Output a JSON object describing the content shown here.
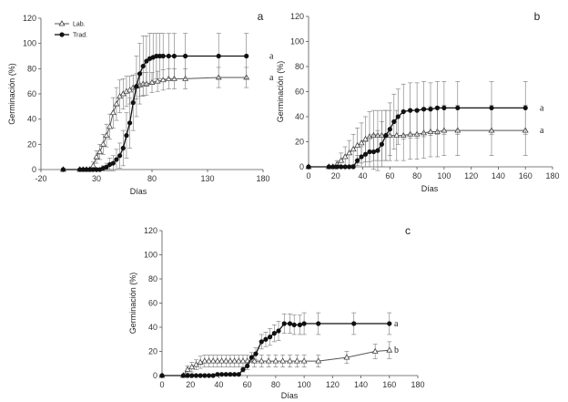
{
  "legend": {
    "lab": "Lab.",
    "trad": "Trad."
  },
  "chart_data": [
    {
      "type": "line",
      "panel_label": "a",
      "xlabel": "Días",
      "ylabel": "Germinación (%)",
      "xlim": [
        -20,
        180
      ],
      "ylim": [
        0,
        120
      ],
      "x_ticks": [
        -20,
        30,
        80,
        130,
        180
      ],
      "y_ticks": [
        0,
        20,
        40,
        60,
        80,
        100,
        120
      ],
      "series": [
        {
          "name": "Lab.",
          "marker": "triangle",
          "points": [
            [
              0,
              0
            ],
            [
              15,
              0
            ],
            [
              18,
              0
            ],
            [
              21,
              0
            ],
            [
              24,
              0
            ],
            [
              27,
              3
            ],
            [
              30,
              10
            ],
            [
              33,
              14
            ],
            [
              36,
              20
            ],
            [
              39,
              27
            ],
            [
              42,
              34
            ],
            [
              45,
              45
            ],
            [
              48,
              52
            ],
            [
              51,
              58
            ],
            [
              54,
              60
            ],
            [
              57,
              62
            ],
            [
              60,
              63
            ],
            [
              63,
              65
            ],
            [
              66,
              66
            ],
            [
              69,
              67
            ],
            [
              72,
              68
            ],
            [
              75,
              68
            ],
            [
              80,
              69
            ],
            [
              85,
              70
            ],
            [
              90,
              71
            ],
            [
              95,
              72
            ],
            [
              100,
              72
            ],
            [
              110,
              72
            ],
            [
              140,
              73
            ],
            [
              165,
              73
            ]
          ],
          "err": [
            0,
            0,
            0,
            0,
            0,
            3,
            5,
            6,
            8,
            9,
            10,
            12,
            13,
            13,
            12,
            12,
            11,
            10,
            10,
            9,
            9,
            9,
            8,
            8,
            8,
            8,
            8,
            8,
            8,
            8
          ],
          "significance": "a"
        },
        {
          "name": "Trad.",
          "marker": "circle",
          "points": [
            [
              0,
              0
            ],
            [
              15,
              0
            ],
            [
              18,
              0
            ],
            [
              21,
              0
            ],
            [
              24,
              0
            ],
            [
              27,
              0
            ],
            [
              30,
              0
            ],
            [
              33,
              0
            ],
            [
              36,
              1
            ],
            [
              39,
              2
            ],
            [
              42,
              4
            ],
            [
              45,
              5
            ],
            [
              48,
              8
            ],
            [
              51,
              11
            ],
            [
              54,
              17
            ],
            [
              57,
              27
            ],
            [
              60,
              37
            ],
            [
              63,
              53
            ],
            [
              66,
              66
            ],
            [
              69,
              76
            ],
            [
              72,
              82
            ],
            [
              75,
              86
            ],
            [
              78,
              88
            ],
            [
              81,
              89
            ],
            [
              84,
              90
            ],
            [
              87,
              90
            ],
            [
              90,
              90
            ],
            [
              95,
              90
            ],
            [
              100,
              90
            ],
            [
              110,
              90
            ],
            [
              140,
              90
            ],
            [
              165,
              90
            ]
          ],
          "err": [
            0,
            0,
            0,
            0,
            0,
            0,
            0,
            0,
            2,
            3,
            5,
            6,
            8,
            10,
            14,
            18,
            20,
            22,
            24,
            24,
            24,
            20,
            20,
            19,
            18,
            18,
            18,
            18,
            18,
            18,
            18,
            18
          ],
          "significance": "a"
        }
      ]
    },
    {
      "type": "line",
      "panel_label": "b",
      "xlabel": "Días",
      "ylabel": "Germinación (%)",
      "xlim": [
        0,
        180
      ],
      "ylim": [
        0,
        120
      ],
      "x_ticks": [
        0,
        20,
        40,
        60,
        80,
        100,
        120,
        140,
        160,
        180
      ],
      "y_ticks": [
        0,
        20,
        40,
        60,
        80,
        100,
        120
      ],
      "series": [
        {
          "name": "Lab.",
          "marker": "triangle",
          "points": [
            [
              0,
              0
            ],
            [
              15,
              0
            ],
            [
              18,
              0
            ],
            [
              21,
              2
            ],
            [
              24,
              5
            ],
            [
              27,
              8
            ],
            [
              30,
              11
            ],
            [
              33,
              14
            ],
            [
              36,
              17
            ],
            [
              39,
              19
            ],
            [
              42,
              22
            ],
            [
              45,
              24
            ],
            [
              48,
              25
            ],
            [
              51,
              25
            ],
            [
              54,
              25
            ],
            [
              57,
              25
            ],
            [
              60,
              25
            ],
            [
              65,
              25
            ],
            [
              70,
              25
            ],
            [
              75,
              26
            ],
            [
              80,
              26
            ],
            [
              85,
              27
            ],
            [
              90,
              28
            ],
            [
              95,
              28
            ],
            [
              100,
              29
            ],
            [
              110,
              29
            ],
            [
              135,
              29
            ],
            [
              160,
              29
            ]
          ],
          "err": [
            0,
            0,
            0,
            3,
            6,
            8,
            10,
            12,
            14,
            16,
            18,
            20,
            20,
            20,
            20,
            20,
            20,
            20,
            20,
            20,
            20,
            20,
            20,
            20,
            20,
            20,
            20,
            20
          ],
          "significance": "a"
        },
        {
          "name": "Trad.",
          "marker": "circle",
          "points": [
            [
              0,
              0
            ],
            [
              15,
              0
            ],
            [
              18,
              0
            ],
            [
              21,
              0
            ],
            [
              24,
              0
            ],
            [
              27,
              0
            ],
            [
              30,
              0
            ],
            [
              33,
              0
            ],
            [
              36,
              5
            ],
            [
              39,
              8
            ],
            [
              42,
              10
            ],
            [
              45,
              12
            ],
            [
              48,
              12
            ],
            [
              51,
              13
            ],
            [
              54,
              18
            ],
            [
              57,
              25
            ],
            [
              60,
              30
            ],
            [
              63,
              36
            ],
            [
              66,
              40
            ],
            [
              70,
              44
            ],
            [
              75,
              45
            ],
            [
              80,
              45
            ],
            [
              85,
              46
            ],
            [
              90,
              46
            ],
            [
              95,
              47
            ],
            [
              100,
              47
            ],
            [
              110,
              47
            ],
            [
              135,
              47
            ],
            [
              160,
              47
            ]
          ],
          "err": [
            0,
            0,
            0,
            0,
            0,
            0,
            0,
            0,
            4,
            8,
            10,
            12,
            14,
            16,
            18,
            20,
            21,
            22,
            22,
            22,
            22,
            22,
            22,
            21,
            21,
            21,
            21,
            21,
            21
          ],
          "significance": "a"
        }
      ]
    },
    {
      "type": "line",
      "panel_label": "c",
      "xlabel": "Días",
      "ylabel": "Germinación (%)",
      "xlim": [
        0,
        180
      ],
      "ylim": [
        0,
        120
      ],
      "x_ticks": [
        0,
        20,
        40,
        60,
        80,
        100,
        120,
        140,
        160,
        180
      ],
      "y_ticks": [
        0,
        20,
        40,
        60,
        80,
        100,
        120
      ],
      "series": [
        {
          "name": "Lab.",
          "marker": "triangle",
          "points": [
            [
              0,
              0
            ],
            [
              15,
              0
            ],
            [
              18,
              5
            ],
            [
              21,
              7
            ],
            [
              24,
              9
            ],
            [
              27,
              11
            ],
            [
              30,
              12
            ],
            [
              33,
              12
            ],
            [
              36,
              12
            ],
            [
              39,
              12
            ],
            [
              42,
              12
            ],
            [
              45,
              12
            ],
            [
              48,
              12
            ],
            [
              51,
              12
            ],
            [
              54,
              12
            ],
            [
              57,
              12
            ],
            [
              60,
              12
            ],
            [
              65,
              12
            ],
            [
              70,
              12
            ],
            [
              75,
              12
            ],
            [
              80,
              12
            ],
            [
              85,
              12
            ],
            [
              90,
              12
            ],
            [
              95,
              12
            ],
            [
              100,
              12
            ],
            [
              110,
              12
            ],
            [
              130,
              15
            ],
            [
              150,
              20
            ],
            [
              160,
              21
            ]
          ],
          "err": [
            0,
            0,
            3,
            4,
            4,
            5,
            5,
            5,
            5,
            5,
            5,
            5,
            5,
            5,
            5,
            5,
            5,
            5,
            5,
            5,
            5,
            5,
            5,
            5,
            5,
            5,
            5,
            6,
            7
          ],
          "significance": "b"
        },
        {
          "name": "Trad.",
          "marker": "circle",
          "points": [
            [
              0,
              0
            ],
            [
              15,
              0
            ],
            [
              18,
              0
            ],
            [
              21,
              0
            ],
            [
              24,
              0
            ],
            [
              27,
              0
            ],
            [
              30,
              0
            ],
            [
              33,
              0
            ],
            [
              36,
              0
            ],
            [
              39,
              1
            ],
            [
              42,
              1
            ],
            [
              45,
              1
            ],
            [
              48,
              1
            ],
            [
              51,
              1
            ],
            [
              54,
              1
            ],
            [
              57,
              5
            ],
            [
              60,
              8
            ],
            [
              63,
              15
            ],
            [
              66,
              18
            ],
            [
              70,
              28
            ],
            [
              73,
              30
            ],
            [
              76,
              32
            ],
            [
              79,
              35
            ],
            [
              82,
              37
            ],
            [
              86,
              43
            ],
            [
              90,
              43
            ],
            [
              93,
              42
            ],
            [
              97,
              42
            ],
            [
              100,
              43
            ],
            [
              110,
              43
            ],
            [
              135,
              43
            ],
            [
              160,
              43
            ]
          ],
          "err": [
            0,
            0,
            0,
            0,
            0,
            0,
            0,
            0,
            0,
            0,
            0,
            0,
            0,
            0,
            0,
            2,
            3,
            4,
            5,
            6,
            6,
            7,
            7,
            8,
            8,
            8,
            8,
            8,
            9,
            9,
            9,
            9
          ],
          "significance": "a"
        }
      ]
    }
  ]
}
